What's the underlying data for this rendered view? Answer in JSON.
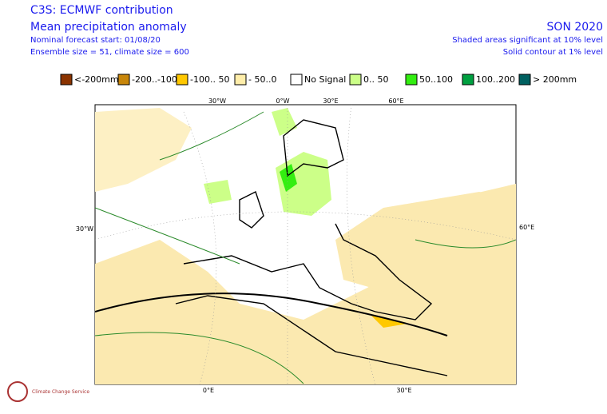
{
  "header": {
    "title": "C3S: ECMWF contribution",
    "subtitle": "Mean precipitation anomaly",
    "forecast_start": "Nominal forecast start: 01/08/20",
    "ensemble": "Ensemble size = 51, climate size = 600",
    "season": "SON 2020",
    "shading_note": "Shaded areas significant at 10% level",
    "contour_note": "Solid contour at 1% level"
  },
  "legend": [
    {
      "label": "<-200mm",
      "color": "#8b3300"
    },
    {
      "label": "-200..-100",
      "color": "#c8860a"
    },
    {
      "label": "-100.. 50",
      "color": "#ffc800"
    },
    {
      "label": "- 50..0",
      "color": "#ffeeaa"
    },
    {
      "label": "No Signal",
      "color": "#ffffff"
    },
    {
      "label": "0.. 50",
      "color": "#ccff88"
    },
    {
      "label": "50..100",
      "color": "#33ee11"
    },
    {
      "label": "100..200",
      "color": "#00a040"
    },
    {
      "label": "> 200mm",
      "color": "#006060"
    }
  ],
  "map": {
    "top_labels": [
      "30°W",
      "0°W",
      "30°E",
      "60°E"
    ],
    "left_label": "30°W",
    "right_label": "60°E",
    "bottom_labels": [
      "0°E",
      "30°E"
    ]
  },
  "logo": "Climate Change Service"
}
